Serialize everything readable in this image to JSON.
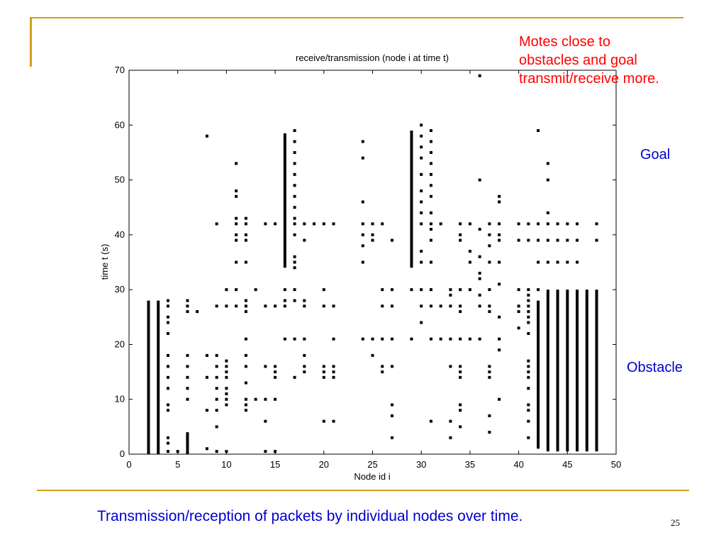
{
  "slide": {
    "annotation": "Motes close to obstacles and goal transmit/receive more.",
    "annotation_lines": [
      "Motes close to",
      "obstacles and goal",
      "transmit/receive more."
    ],
    "goal_label": "Goal",
    "obstacle_label": "Obstacle",
    "caption": "Transmission/reception of packets by individual nodes over time.",
    "page_number": "25",
    "accent_color": "#d4a017",
    "annotation_color": "#ff0000",
    "label_color": "#0000cc"
  },
  "chart_data": {
    "type": "scatter",
    "title": "receive/transmission (node i at time t)",
    "xlabel": "Node id i",
    "ylabel": "time t (s)",
    "xlim": [
      0,
      50
    ],
    "ylim": [
      0,
      70
    ],
    "xticks": [
      0,
      5,
      10,
      15,
      20,
      25,
      30,
      35,
      40,
      45,
      50
    ],
    "yticks": [
      0,
      10,
      20,
      30,
      40,
      50,
      60,
      70
    ],
    "grid": false,
    "legend": "none",
    "marker_color": "#000000",
    "columns": [
      {
        "node": 2,
        "ranges": [
          [
            0,
            28
          ]
        ]
      },
      {
        "node": 3,
        "ranges": [
          [
            0,
            28
          ]
        ]
      },
      {
        "node": 4,
        "times": [
          0.5,
          2,
          3,
          8,
          9,
          12,
          14,
          16,
          18,
          22,
          24,
          25,
          27,
          28
        ]
      },
      {
        "node": 5,
        "times": [
          0.5
        ]
      },
      {
        "node": 6,
        "ranges": [
          [
            0,
            4
          ]
        ],
        "times": [
          10,
          12,
          14,
          16,
          18,
          26,
          27,
          28
        ]
      },
      {
        "node": 7,
        "times": [
          26
        ]
      },
      {
        "node": 8,
        "times": [
          1,
          8,
          14,
          18,
          58
        ]
      },
      {
        "node": 9,
        "times": [
          0.5,
          5,
          8,
          10,
          12,
          14,
          16,
          18,
          27,
          42
        ]
      },
      {
        "node": 10,
        "times": [
          0.5,
          9,
          10,
          11,
          12,
          14,
          15,
          16,
          17,
          27,
          30
        ]
      },
      {
        "node": 11,
        "times": [
          27,
          30,
          35,
          39,
          40,
          42,
          43,
          47,
          48,
          53
        ]
      },
      {
        "node": 12,
        "times": [
          8,
          9,
          10,
          13,
          16,
          18,
          21,
          26,
          27,
          28,
          35,
          39,
          40,
          42,
          43
        ]
      },
      {
        "node": 13,
        "times": [
          10,
          30
        ]
      },
      {
        "node": 14,
        "times": [
          0.5,
          6,
          10,
          16,
          27,
          42
        ]
      },
      {
        "node": 15,
        "times": [
          0.5,
          10,
          14,
          15,
          16,
          27,
          42
        ]
      },
      {
        "node": 16,
        "ranges": [
          [
            34,
            58.5
          ]
        ],
        "times": [
          21,
          27,
          28,
          30
        ]
      },
      {
        "node": 17,
        "times": [
          14,
          21,
          28,
          30,
          34,
          35,
          36,
          40,
          42,
          43,
          45,
          47,
          49,
          51,
          53,
          55,
          57,
          59
        ]
      },
      {
        "node": 18,
        "times": [
          15,
          16,
          18,
          21,
          27,
          28,
          39,
          42
        ]
      },
      {
        "node": 19,
        "times": [
          42
        ]
      },
      {
        "node": 20,
        "times": [
          6,
          14,
          15,
          16,
          27,
          30,
          42
        ]
      },
      {
        "node": 21,
        "times": [
          6,
          14,
          15,
          16,
          21,
          27,
          42
        ]
      },
      {
        "node": 24,
        "times": [
          21,
          35,
          38,
          40,
          42,
          46,
          54,
          57
        ]
      },
      {
        "node": 25,
        "times": [
          18,
          21,
          39,
          40,
          42
        ]
      },
      {
        "node": 26,
        "times": [
          15,
          16,
          21,
          27,
          30,
          42
        ]
      },
      {
        "node": 27,
        "times": [
          3,
          7,
          9,
          16,
          21,
          27,
          30,
          39
        ]
      },
      {
        "node": 29,
        "ranges": [
          [
            34,
            59
          ]
        ],
        "times": [
          21,
          30
        ]
      },
      {
        "node": 30,
        "times": [
          24,
          27,
          30,
          35,
          37,
          42,
          44,
          46,
          48,
          51,
          54,
          56,
          58,
          60
        ]
      },
      {
        "node": 31,
        "times": [
          6,
          21,
          27,
          30,
          35,
          39,
          41,
          42,
          44,
          47,
          49,
          51,
          53,
          55,
          57,
          59
        ]
      },
      {
        "node": 32,
        "times": [
          21,
          27,
          42
        ]
      },
      {
        "node": 33,
        "times": [
          3,
          6,
          16,
          21,
          27,
          29,
          30
        ]
      },
      {
        "node": 34,
        "times": [
          5,
          8,
          9,
          14,
          15,
          16,
          21,
          26,
          27,
          30,
          39,
          40,
          42
        ]
      },
      {
        "node": 35,
        "times": [
          21,
          30,
          35,
          37,
          42
        ]
      },
      {
        "node": 36,
        "times": [
          21,
          27,
          29,
          32,
          33,
          36,
          41,
          50,
          69
        ]
      },
      {
        "node": 37,
        "times": [
          4,
          7,
          14,
          15,
          16,
          26,
          27,
          30,
          35,
          38,
          40,
          42
        ]
      },
      {
        "node": 38,
        "times": [
          10,
          19,
          21,
          25,
          31,
          35,
          39,
          40,
          42,
          46,
          47
        ]
      },
      {
        "node": 40,
        "times": [
          23,
          26,
          27,
          30,
          39,
          42
        ]
      },
      {
        "node": 41,
        "times": [
          3,
          6,
          8,
          9,
          12,
          14,
          15,
          16,
          17,
          22,
          24,
          25,
          26,
          27,
          28,
          29,
          30,
          39,
          42
        ]
      },
      {
        "node": 42,
        "ranges": [
          [
            1,
            28
          ]
        ],
        "times": [
          30,
          35,
          39,
          42,
          59
        ]
      },
      {
        "node": 43,
        "ranges": [
          [
            0.5,
            30
          ]
        ],
        "times": [
          35,
          39,
          42,
          44,
          50,
          53
        ]
      },
      {
        "node": 44,
        "ranges": [
          [
            0.5,
            30
          ]
        ],
        "times": [
          35,
          39,
          42
        ]
      },
      {
        "node": 45,
        "ranges": [
          [
            0.5,
            30
          ]
        ],
        "times": [
          35,
          39,
          42
        ]
      },
      {
        "node": 46,
        "ranges": [
          [
            0.5,
            30
          ]
        ],
        "times": [
          35,
          39,
          42
        ]
      },
      {
        "node": 47,
        "ranges": [
          [
            0.5,
            30
          ]
        ]
      },
      {
        "node": 48,
        "ranges": [
          [
            0.5,
            30
          ]
        ],
        "times": [
          39,
          42
        ]
      }
    ]
  }
}
